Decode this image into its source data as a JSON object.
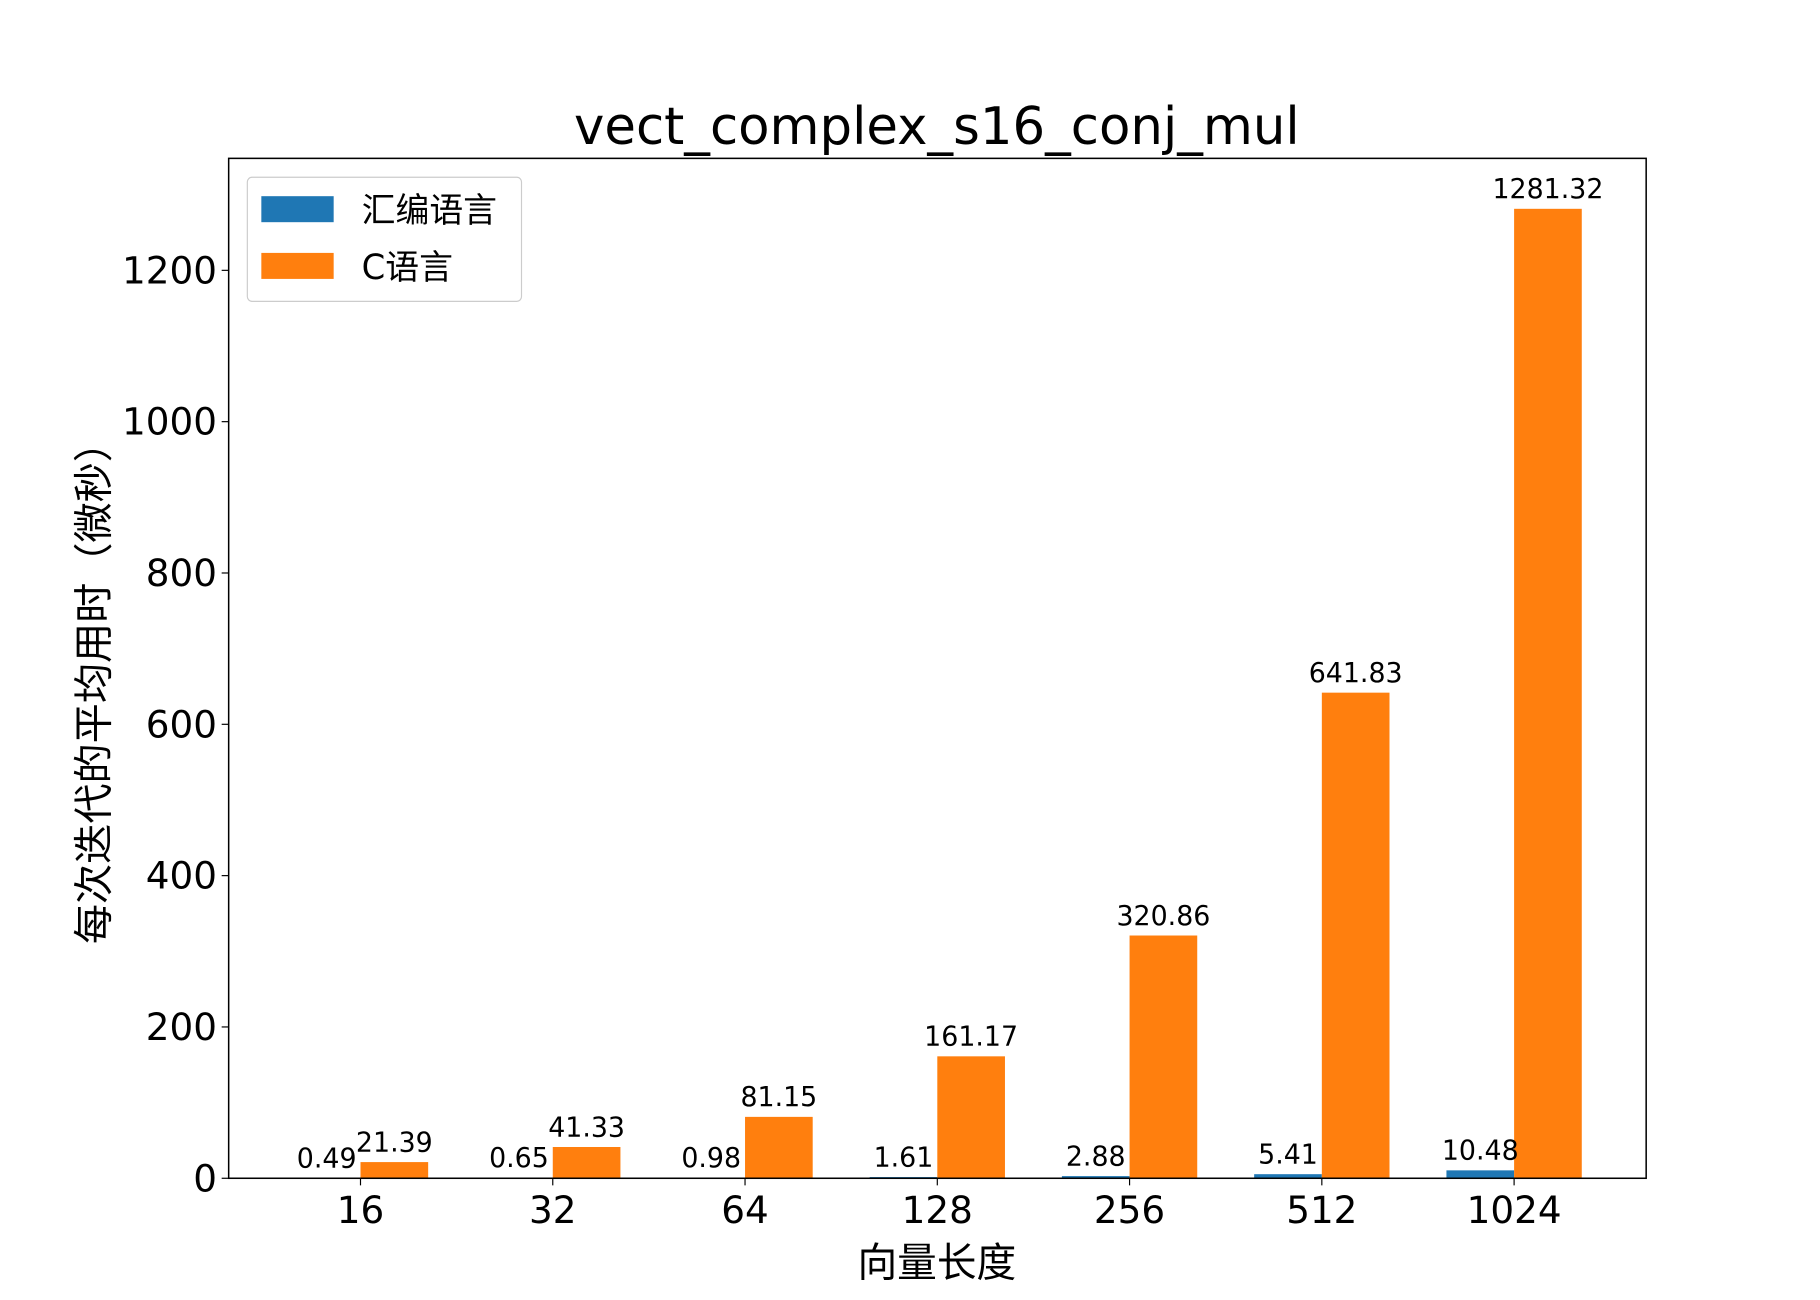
{
  "chart_data": {
    "type": "bar",
    "title": "vect_complex_s16_conj_mul",
    "xlabel": "向量长度",
    "ylabel": "每次迭代的平均用时（微秒）",
    "categories": [
      "16",
      "32",
      "64",
      "128",
      "256",
      "512",
      "1024"
    ],
    "series": [
      {
        "name": "汇编语言",
        "color": "#1f77b4",
        "values": [
          0.49,
          0.65,
          0.98,
          1.61,
          2.88,
          5.41,
          10.48
        ]
      },
      {
        "name": "C语言",
        "color": "#ff7f0e",
        "values": [
          21.39,
          41.33,
          81.15,
          161.17,
          320.86,
          641.83,
          1281.32
        ]
      }
    ],
    "ylim": [
      0,
      1348
    ],
    "yticks": [
      0,
      200,
      400,
      600,
      800,
      1000,
      1200
    ],
    "grid": false,
    "legend": "top-left"
  }
}
